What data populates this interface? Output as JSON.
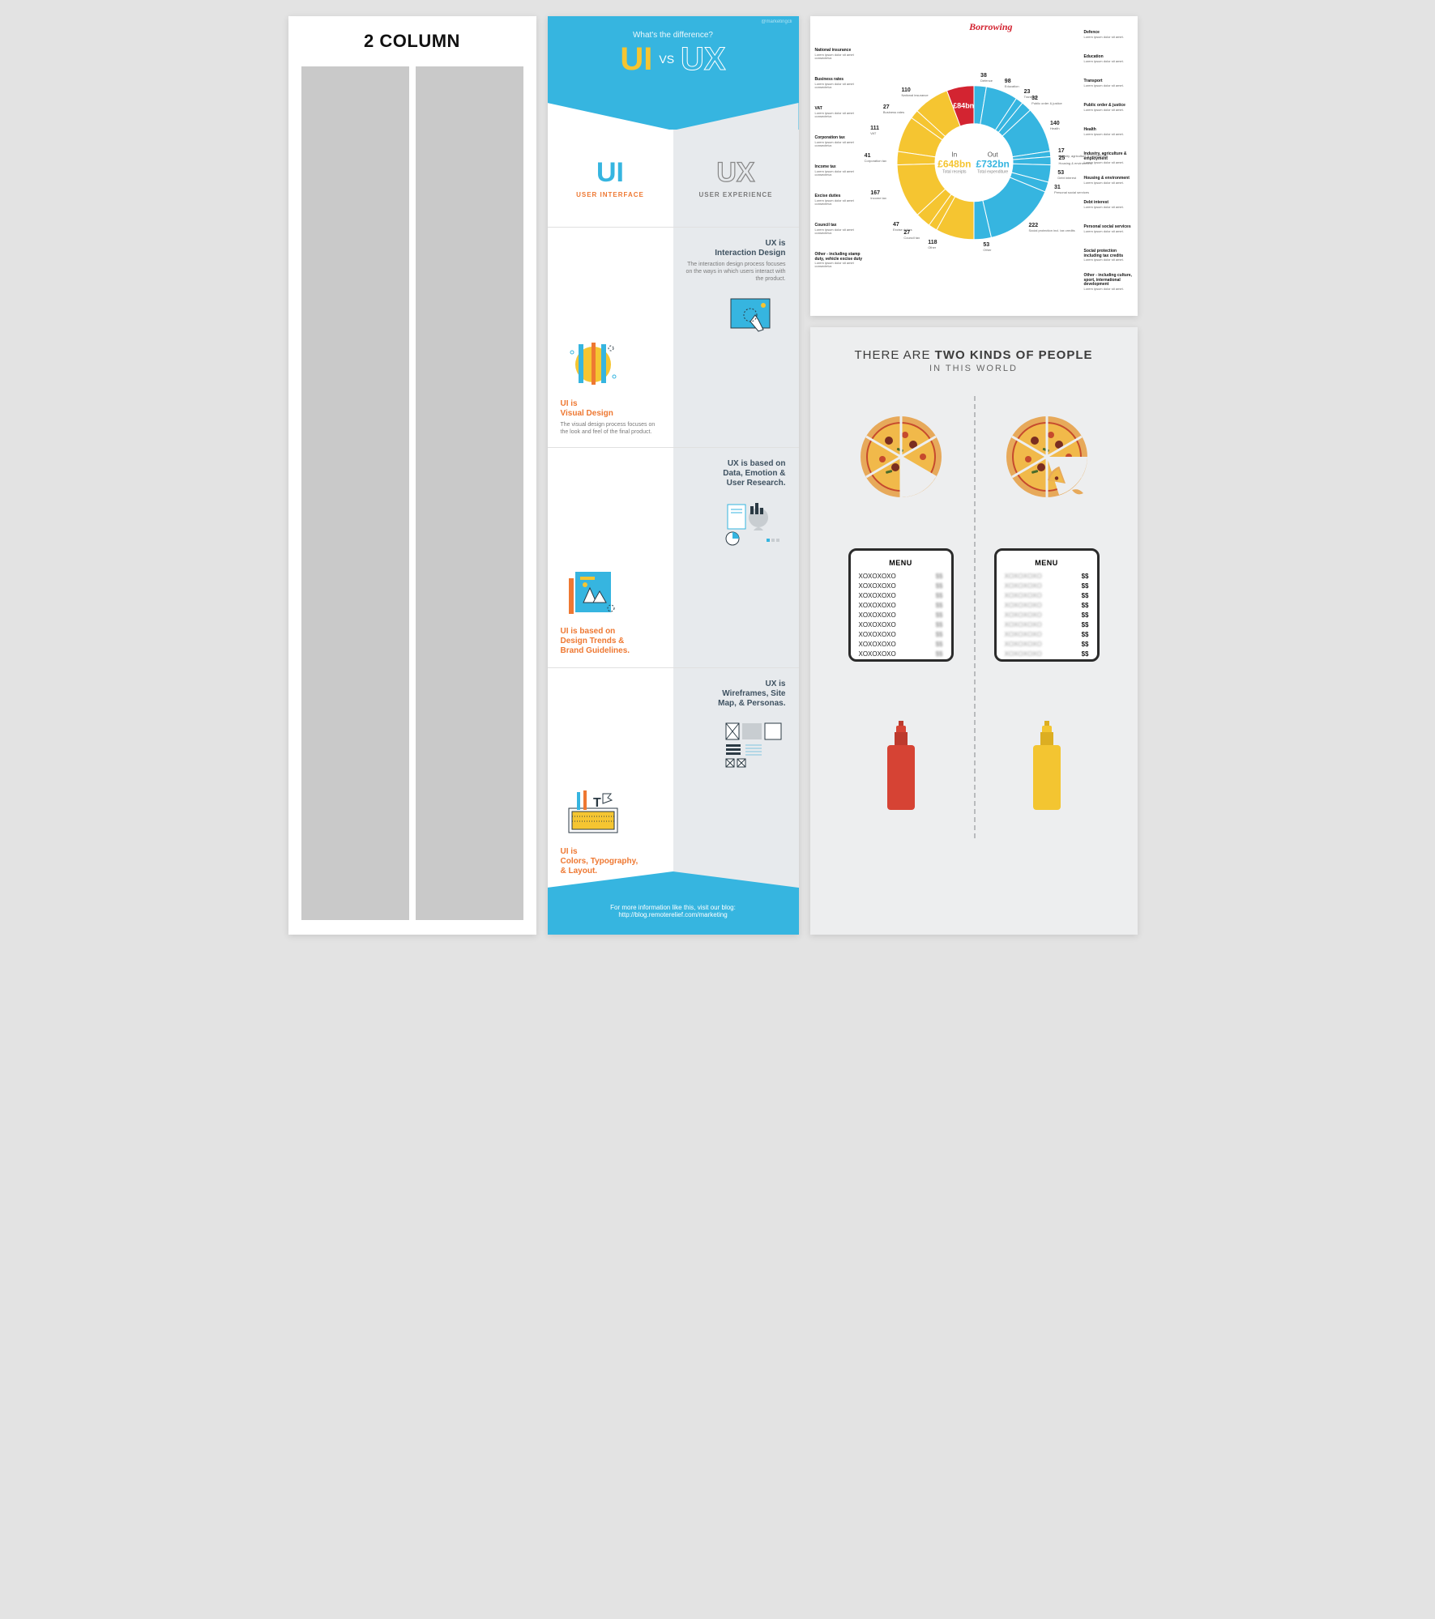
{
  "panelA": {
    "title": "2 COLUMN",
    "column_color": "#c9c9c9",
    "column_count": 2
  },
  "panelB": {
    "credit": "@marketingcli",
    "kicker": "What's the difference?",
    "title_left": "UI",
    "title_vs": "VS",
    "title_right": "UX",
    "header_bg": "#36b5e0",
    "accent_yellow": "#f5c531",
    "accent_orange": "#ee7832",
    "right_bg": "#e7eaed",
    "defs": {
      "left_abbr": "UI",
      "left_full": "USER INTERFACE",
      "right_abbr": "UX",
      "right_full": "USER EXPERIENCE"
    },
    "rows": [
      {
        "left_title": "UI is\nVisual Design",
        "left_body": "The visual design process focuses on the look and feel of the final product.",
        "right_title": "UX is\nInteraction Design",
        "right_body": "The interaction design process focuses on the ways in which users interact with the product."
      },
      {
        "left_title": "UI is based on\nDesign Trends &\nBrand Guidelines.",
        "left_body": "",
        "right_title": "UX is based on\nData, Emotion &\nUser Research.",
        "right_body": ""
      },
      {
        "left_title": "UI is\nColors, Typography,\n& Layout.",
        "left_body": "",
        "right_title": "UX is\nWireframes, Site\nMap, & Personas.",
        "right_body": ""
      }
    ],
    "footer_line1": "For more information like this, visit our blog:",
    "footer_line2": "http://blog.remoterelief.com/marketing"
  },
  "panelC": {
    "type": "donut",
    "borrowing_label": "Borrowing",
    "borrowing_value": "£84bn",
    "center": {
      "in_label": "In",
      "in_value": "£648bn",
      "in_sub": "Total receipts",
      "out_label": "Out",
      "out_value": "£732bn",
      "out_sub": "Total expenditure"
    },
    "colors": {
      "in": "#f5c531",
      "out": "#36b5e0",
      "borrow": "#d32431",
      "bg": "#ffffff"
    },
    "inner_radius_pct": 50,
    "in_slices": [
      {
        "label": "110",
        "sub": "National insurance"
      },
      {
        "label": "27",
        "sub": "Business rates"
      },
      {
        "label": "111",
        "sub": "VAT"
      },
      {
        "label": "41",
        "sub": "Corporation tax"
      },
      {
        "label": "167",
        "sub": "Income tax"
      },
      {
        "label": "47",
        "sub": "Excise duties"
      },
      {
        "label": "27",
        "sub": "Council tax"
      },
      {
        "label": "118",
        "sub": "Other"
      }
    ],
    "out_slices": [
      {
        "label": "38",
        "sub": "Defence"
      },
      {
        "label": "98",
        "sub": "Education"
      },
      {
        "label": "23",
        "sub": "Transport"
      },
      {
        "label": "32",
        "sub": "Public order & justice"
      },
      {
        "label": "140",
        "sub": "Health"
      },
      {
        "label": "17",
        "sub": "Industry, agriculture & employment"
      },
      {
        "label": "25",
        "sub": "Housing & environment"
      },
      {
        "label": "53",
        "sub": "Debt interest"
      },
      {
        "label": "31",
        "sub": "Personal social services"
      },
      {
        "label": "222",
        "sub": "Social protection incl. tax credits"
      },
      {
        "label": "53",
        "sub": "Other"
      }
    ],
    "side_desc": [
      "National insurance",
      "Business rates",
      "VAT",
      "Corporation tax",
      "Income tax",
      "Excise duties",
      "Council tax",
      "Other - including stamp duty, vehicle excise duty",
      "Defence",
      "Education",
      "Transport",
      "Public order & justice",
      "Health",
      "Industry, agriculture & employment",
      "Housing & environment",
      "Debt interest",
      "Personal social services",
      "Social protection including tax credits",
      "Other - including culture, sport, international development"
    ]
  },
  "panelD": {
    "title_plain": "THERE ARE ",
    "title_bold": "TWO KINDS OF PEOPLE",
    "subtitle": "IN THIS WORLD",
    "bg": "#edeeef",
    "divider_color": "#b9bbbd",
    "menu_title": "MENU",
    "menu_item_name": "XOXOXOXO",
    "menu_item_price": "$$",
    "menu_rows": 9,
    "bottle_colors": {
      "ketchup": "#d64334",
      "mustard": "#f3c531"
    },
    "pizza_colors": {
      "crust": "#e7a95a",
      "sauce": "#c64a2d",
      "cheese": "#f1b94a",
      "topping1": "#7a2d20",
      "topping2": "#4a6b2a"
    }
  }
}
